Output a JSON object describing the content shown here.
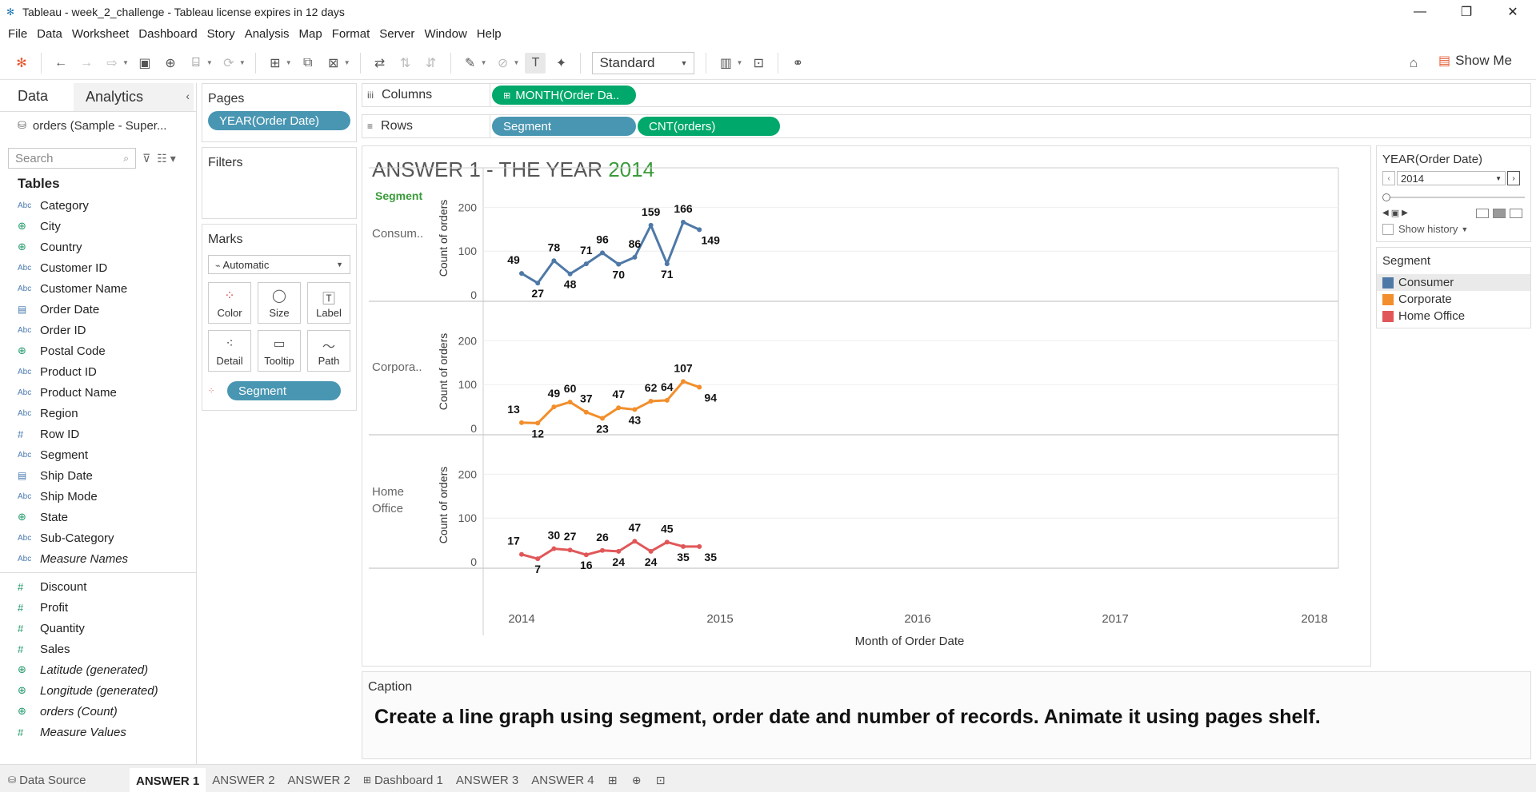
{
  "window": {
    "title": "Tableau - week_2_challenge - Tableau license expires in 12 days",
    "minimize": "—",
    "maximize": "❐",
    "close": "✕"
  },
  "menu": [
    "File",
    "Data",
    "Worksheet",
    "Dashboard",
    "Story",
    "Analysis",
    "Map",
    "Format",
    "Server",
    "Window",
    "Help"
  ],
  "toolbar": {
    "fit_select": "Standard",
    "show_me": "Show Me"
  },
  "data_pane": {
    "tab_data": "Data",
    "tab_analytics": "Analytics",
    "datasource": "orders (Sample - Super...",
    "search_placeholder": "Search",
    "tables_heading": "Tables",
    "dimensions": [
      {
        "type": "Abc",
        "name": "Category"
      },
      {
        "type": "geo",
        "name": "City"
      },
      {
        "type": "geo",
        "name": "Country"
      },
      {
        "type": "Abc",
        "name": "Customer ID"
      },
      {
        "type": "Abc",
        "name": "Customer Name"
      },
      {
        "type": "date",
        "name": "Order Date"
      },
      {
        "type": "Abc",
        "name": "Order ID"
      },
      {
        "type": "geo",
        "name": "Postal Code"
      },
      {
        "type": "Abc",
        "name": "Product ID"
      },
      {
        "type": "Abc",
        "name": "Product Name"
      },
      {
        "type": "Abc",
        "name": "Region"
      },
      {
        "type": "num",
        "name": "Row ID"
      },
      {
        "type": "Abc",
        "name": "Segment"
      },
      {
        "type": "date",
        "name": "Ship Date"
      },
      {
        "type": "Abc",
        "name": "Ship Mode"
      },
      {
        "type": "geo",
        "name": "State"
      },
      {
        "type": "Abc",
        "name": "Sub-Category"
      },
      {
        "type": "Abc",
        "name": "Measure Names",
        "italic": true
      }
    ],
    "measures": [
      {
        "type": "#",
        "name": "Discount"
      },
      {
        "type": "#",
        "name": "Profit"
      },
      {
        "type": "#",
        "name": "Quantity"
      },
      {
        "type": "#",
        "name": "Sales"
      },
      {
        "type": "geo",
        "name": "Latitude (generated)",
        "italic": true
      },
      {
        "type": "geo",
        "name": "Longitude (generated)",
        "italic": true
      },
      {
        "type": "geo",
        "name": "orders (Count)",
        "italic": true
      },
      {
        "type": "#",
        "name": "Measure Values",
        "italic": true
      }
    ]
  },
  "pages": {
    "title": "Pages",
    "pill": "YEAR(Order Date)"
  },
  "filters": {
    "title": "Filters"
  },
  "marks": {
    "title": "Marks",
    "type": "Automatic",
    "buttons": [
      "Color",
      "Size",
      "Label",
      "Detail",
      "Tooltip",
      "Path"
    ],
    "segment_pill": "Segment"
  },
  "shelves": {
    "columns_label": "Columns",
    "columns_pill": "MONTH(Order Da..",
    "rows_label": "Rows",
    "rows_pills": [
      "Segment",
      "CNT(orders)"
    ]
  },
  "sheet": {
    "title_prefix": "ANSWER 1 -  THE YEAR ",
    "title_year": "2014",
    "segment_header": "Segment"
  },
  "chart_data": {
    "type": "line",
    "xlabel": "Month of Order Date",
    "ylabel": "Count of orders",
    "x_ticks": [
      "2014",
      "2015",
      "2016",
      "2017",
      "2018"
    ],
    "y_ticks": [
      0,
      100,
      200
    ],
    "ylim": [
      0,
      250
    ],
    "panes": [
      {
        "label": "Consum..",
        "color": "#4e79a7",
        "values": [
          49,
          27,
          78,
          48,
          71,
          96,
          70,
          86,
          159,
          71,
          166,
          149
        ]
      },
      {
        "label": "Corpora..",
        "color": "#f28e2b",
        "values": [
          13,
          12,
          49,
          60,
          37,
          23,
          47,
          43,
          62,
          64,
          107,
          94
        ]
      },
      {
        "label": "Home\nOffice",
        "color": "#e15759",
        "values": [
          17,
          7,
          30,
          27,
          16,
          26,
          24,
          47,
          24,
          45,
          35,
          35
        ]
      }
    ]
  },
  "caption": {
    "title": "Caption",
    "text": "Create a line graph using segment, order date and number of records. Animate it using pages shelf."
  },
  "page_control": {
    "title": "YEAR(Order Date)",
    "value": "2014",
    "show_history": "Show history"
  },
  "legend": {
    "title": "Segment",
    "items": [
      {
        "name": "Consumer",
        "color": "#4e79a7"
      },
      {
        "name": "Corporate",
        "color": "#f28e2b"
      },
      {
        "name": "Home Office",
        "color": "#e15759"
      }
    ]
  },
  "tabs": {
    "datasource": "Data Source",
    "sheets": [
      "ANSWER 1",
      "ANSWER 2",
      "ANSWER 2",
      "Dashboard 1",
      "ANSWER 3",
      "ANSWER 4"
    ],
    "active": "ANSWER 1"
  }
}
